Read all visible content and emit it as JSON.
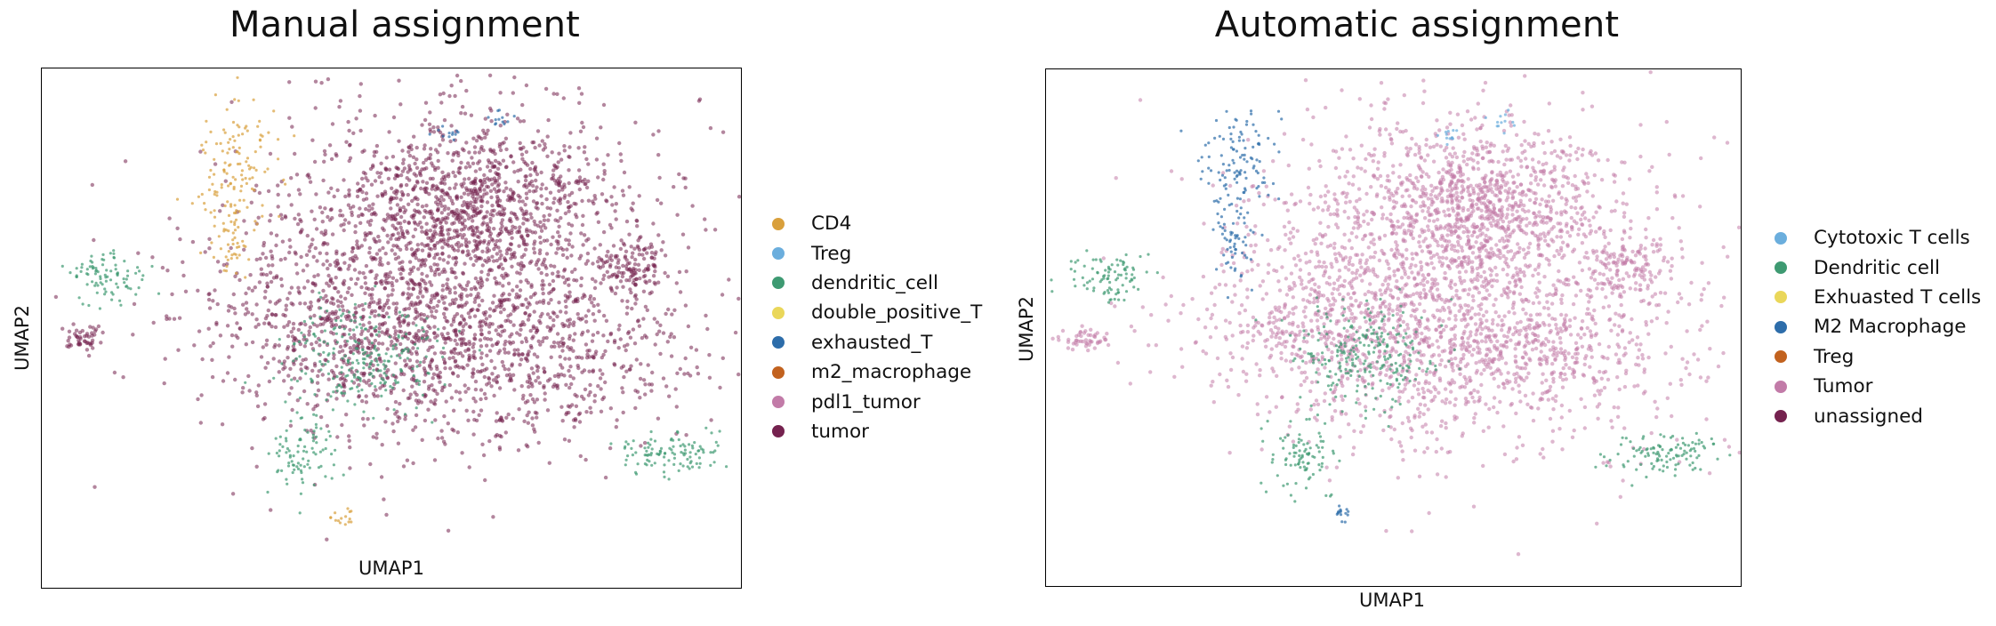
{
  "chart_data": [
    {
      "type": "scatter",
      "title": "Manual assignment",
      "xlabel": "UMAP1",
      "ylabel": "UMAP2",
      "grid": false,
      "ticks": false,
      "legend_placement": "right",
      "series": [
        {
          "name": "CD4",
          "color": "#D9A03C"
        },
        {
          "name": "Treg",
          "color": "#6BAEDD"
        },
        {
          "name": "dendritic_cell",
          "color": "#3E9A72"
        },
        {
          "name": "double_positive_T",
          "color": "#EAD75A"
        },
        {
          "name": "exhausted_T",
          "color": "#2D6DAA"
        },
        {
          "name": "m2_macrophage",
          "color": "#C2621F"
        },
        {
          "name": "pdl1_tumor",
          "color": "#C27BA8"
        },
        {
          "name": "tumor",
          "color": "#75224F"
        }
      ],
      "point_groups": {
        "main": "tumor",
        "immune": "dendritic_cell",
        "tcell": "CD4",
        "accent": "exhausted_T"
      }
    },
    {
      "type": "scatter",
      "title": "Automatic assignment",
      "xlabel": "UMAP1",
      "ylabel": "UMAP2",
      "grid": false,
      "ticks": false,
      "legend_placement": "right",
      "series": [
        {
          "name": "Cytotoxic T cells",
          "color": "#6BAEDD"
        },
        {
          "name": "Dendritic cell",
          "color": "#3E9A72"
        },
        {
          "name": "Exhuasted T cells",
          "color": "#EAD75A"
        },
        {
          "name": "M2 Macrophage",
          "color": "#2D6DAA"
        },
        {
          "name": "Treg",
          "color": "#C2621F"
        },
        {
          "name": "Tumor",
          "color": "#C27BA8"
        },
        {
          "name": "unassigned",
          "color": "#75224F"
        }
      ],
      "point_groups": {
        "main": "Tumor",
        "immune": "Dendritic cell",
        "tcell": "M2 Macrophage",
        "accent": "Cytotoxic T cells"
      }
    }
  ]
}
